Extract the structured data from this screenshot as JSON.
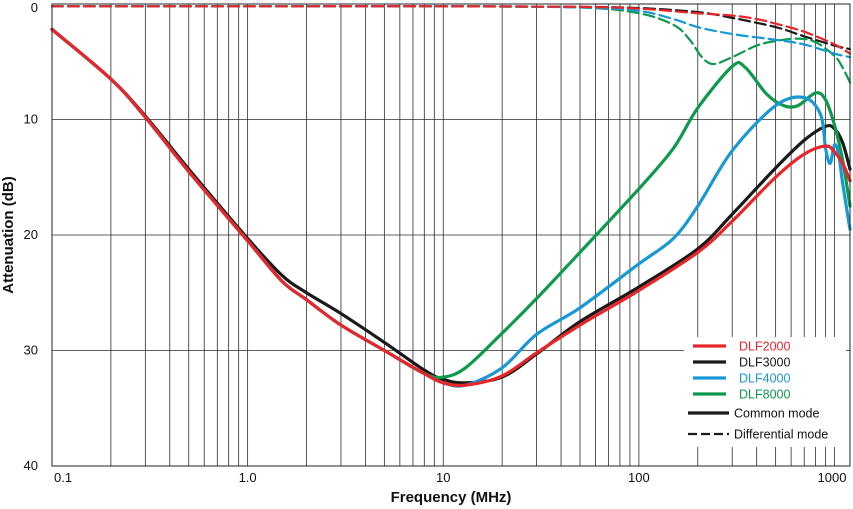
{
  "chart_data": {
    "type": "line",
    "xlabel": "Frequency (MHz)",
    "ylabel": "Attenuation (dB)",
    "x_scale": "log",
    "xlim": [
      0.1,
      1200
    ],
    "ylim": [
      0,
      40
    ],
    "y_inverted": true,
    "grid": true,
    "legend_position": "bottom-right",
    "x_ticks": [
      {
        "value": 0.1,
        "label": "0.1"
      },
      {
        "value": 1,
        "label": "1.0"
      },
      {
        "value": 10,
        "label": "10"
      },
      {
        "value": 100,
        "label": "100"
      },
      {
        "value": 1000,
        "label": "1000"
      }
    ],
    "y_ticks": [
      {
        "value": 0,
        "label": "0"
      },
      {
        "value": 10,
        "label": "10"
      },
      {
        "value": 20,
        "label": "20"
      },
      {
        "value": 30,
        "label": "30"
      },
      {
        "value": 40,
        "label": "40"
      }
    ],
    "legend": {
      "series": [
        {
          "name": "DLF2000",
          "color": "#e8262a"
        },
        {
          "name": "DLF3000",
          "color": "#1a1a1a"
        },
        {
          "name": "DLF4000",
          "color": "#1899d6"
        },
        {
          "name": "DLF8000",
          "color": "#0d9a4a"
        }
      ],
      "styles": [
        {
          "name": "Common mode",
          "dash": "solid"
        },
        {
          "name": "Differential mode",
          "dash": "dashed"
        }
      ]
    },
    "series": [
      {
        "name": "DLF2000",
        "mode": "Common mode",
        "color": "#e8262a",
        "dash": "solid",
        "points": [
          [
            0.1,
            2.2
          ],
          [
            0.2,
            6.5
          ],
          [
            0.3,
            9.8
          ],
          [
            0.5,
            14.5
          ],
          [
            1,
            20.5
          ],
          [
            1.5,
            24
          ],
          [
            2,
            25.6
          ],
          [
            3,
            27.8
          ],
          [
            5,
            30
          ],
          [
            8,
            32
          ],
          [
            10,
            32.8
          ],
          [
            13,
            33
          ],
          [
            20,
            32.2
          ],
          [
            30,
            30.2
          ],
          [
            50,
            27.8
          ],
          [
            100,
            24.8
          ],
          [
            200,
            21.5
          ],
          [
            300,
            18.8
          ],
          [
            500,
            15
          ],
          [
            700,
            13
          ],
          [
            900,
            12.3
          ],
          [
            1000,
            12.8
          ],
          [
            1100,
            13.8
          ],
          [
            1200,
            15.3
          ]
        ]
      },
      {
        "name": "DLF3000",
        "mode": "Common mode",
        "color": "#1a1a1a",
        "dash": "solid",
        "points": [
          [
            0.1,
            2.2
          ],
          [
            0.2,
            6.5
          ],
          [
            0.3,
            9.7
          ],
          [
            0.5,
            14.3
          ],
          [
            1,
            20.3
          ],
          [
            1.5,
            23.5
          ],
          [
            2,
            25
          ],
          [
            3,
            26.8
          ],
          [
            5,
            29.3
          ],
          [
            8,
            31.7
          ],
          [
            10,
            32.5
          ],
          [
            13,
            32.8
          ],
          [
            20,
            32.3
          ],
          [
            30,
            30.3
          ],
          [
            50,
            27.5
          ],
          [
            100,
            24.5
          ],
          [
            200,
            21.2
          ],
          [
            300,
            18.2
          ],
          [
            500,
            14.2
          ],
          [
            700,
            11.8
          ],
          [
            900,
            10.6
          ],
          [
            1000,
            10.8
          ],
          [
            1100,
            12
          ],
          [
            1200,
            14.3
          ]
        ]
      },
      {
        "name": "DLF4000",
        "mode": "Common mode",
        "color": "#1899d6",
        "dash": "solid",
        "points": [
          [
            0.1,
            2.2
          ],
          [
            0.2,
            6.5
          ],
          [
            0.3,
            9.8
          ],
          [
            0.5,
            14.5
          ],
          [
            1,
            20.5
          ],
          [
            1.5,
            24
          ],
          [
            2,
            25.6
          ],
          [
            3,
            27.8
          ],
          [
            5,
            30
          ],
          [
            8,
            32
          ],
          [
            10,
            32.8
          ],
          [
            13,
            33
          ],
          [
            20,
            31.5
          ],
          [
            30,
            28.6
          ],
          [
            50,
            26.3
          ],
          [
            100,
            22.5
          ],
          [
            150,
            20.3
          ],
          [
            200,
            17.5
          ],
          [
            300,
            12.7
          ],
          [
            500,
            8.8
          ],
          [
            700,
            8.1
          ],
          [
            850,
            9.6
          ],
          [
            900,
            12.5
          ],
          [
            950,
            13.8
          ],
          [
            1000,
            12.2
          ],
          [
            1050,
            13
          ],
          [
            1100,
            15.5
          ],
          [
            1200,
            19.5
          ]
        ]
      },
      {
        "name": "DLF8000",
        "mode": "Common mode",
        "color": "#0d9a4a",
        "dash": "solid",
        "points": [
          [
            0.1,
            2.2
          ],
          [
            0.2,
            6.5
          ],
          [
            0.3,
            9.8
          ],
          [
            0.5,
            14.5
          ],
          [
            1,
            20.5
          ],
          [
            1.5,
            24
          ],
          [
            2,
            25.6
          ],
          [
            3,
            27.8
          ],
          [
            5,
            30
          ],
          [
            8,
            32
          ],
          [
            10,
            32.3
          ],
          [
            13,
            31.5
          ],
          [
            20,
            28.5
          ],
          [
            30,
            25.5
          ],
          [
            50,
            21.5
          ],
          [
            100,
            16
          ],
          [
            150,
            12.5
          ],
          [
            200,
            9
          ],
          [
            300,
            5.4
          ],
          [
            350,
            5.5
          ],
          [
            450,
            7.8
          ],
          [
            550,
            8.8
          ],
          [
            650,
            8.8
          ],
          [
            800,
            7.7
          ],
          [
            900,
            8.3
          ],
          [
            1000,
            10.5
          ],
          [
            1100,
            13.5
          ],
          [
            1200,
            17.5
          ]
        ]
      },
      {
        "name": "DLF2000",
        "mode": "Differential mode",
        "color": "#e8262a",
        "dash": "dashed",
        "points": [
          [
            0.1,
            0.2
          ],
          [
            1,
            0.2
          ],
          [
            10,
            0.2
          ],
          [
            50,
            0.25
          ],
          [
            100,
            0.4
          ],
          [
            200,
            0.8
          ],
          [
            300,
            1
          ],
          [
            400,
            1.3
          ],
          [
            500,
            1.7
          ],
          [
            700,
            2.4
          ],
          [
            1000,
            3.5
          ],
          [
            1200,
            4.3
          ]
        ]
      },
      {
        "name": "DLF3000",
        "mode": "Differential mode",
        "color": "#1a1a1a",
        "dash": "dashed",
        "points": [
          [
            0.1,
            0.2
          ],
          [
            1,
            0.2
          ],
          [
            10,
            0.2
          ],
          [
            50,
            0.25
          ],
          [
            100,
            0.35
          ],
          [
            200,
            0.7
          ],
          [
            300,
            1.2
          ],
          [
            500,
            2
          ],
          [
            700,
            2.8
          ],
          [
            1000,
            3.6
          ],
          [
            1200,
            3.9
          ]
        ]
      },
      {
        "name": "DLF4000",
        "mode": "Differential mode",
        "color": "#1899d6",
        "dash": "dashed",
        "points": [
          [
            0.1,
            0.2
          ],
          [
            1,
            0.2
          ],
          [
            10,
            0.2
          ],
          [
            50,
            0.3
          ],
          [
            100,
            0.6
          ],
          [
            150,
            1.3
          ],
          [
            200,
            2
          ],
          [
            300,
            2.6
          ],
          [
            500,
            3.1
          ],
          [
            700,
            3.5
          ],
          [
            1000,
            4.3
          ],
          [
            1200,
            4.6
          ]
        ]
      },
      {
        "name": "DLF8000",
        "mode": "Differential mode",
        "color": "#0d9a4a",
        "dash": "dashed",
        "points": [
          [
            0.1,
            0.2
          ],
          [
            1,
            0.2
          ],
          [
            10,
            0.2
          ],
          [
            50,
            0.3
          ],
          [
            100,
            0.8
          ],
          [
            150,
            1.8
          ],
          [
            180,
            3
          ],
          [
            210,
            4.6
          ],
          [
            240,
            5.2
          ],
          [
            300,
            4.6
          ],
          [
            400,
            3.6
          ],
          [
            500,
            3.2
          ],
          [
            650,
            3
          ],
          [
            800,
            3.3
          ],
          [
            1000,
            4.5
          ],
          [
            1100,
            5.5
          ],
          [
            1200,
            6.8
          ]
        ]
      }
    ]
  }
}
